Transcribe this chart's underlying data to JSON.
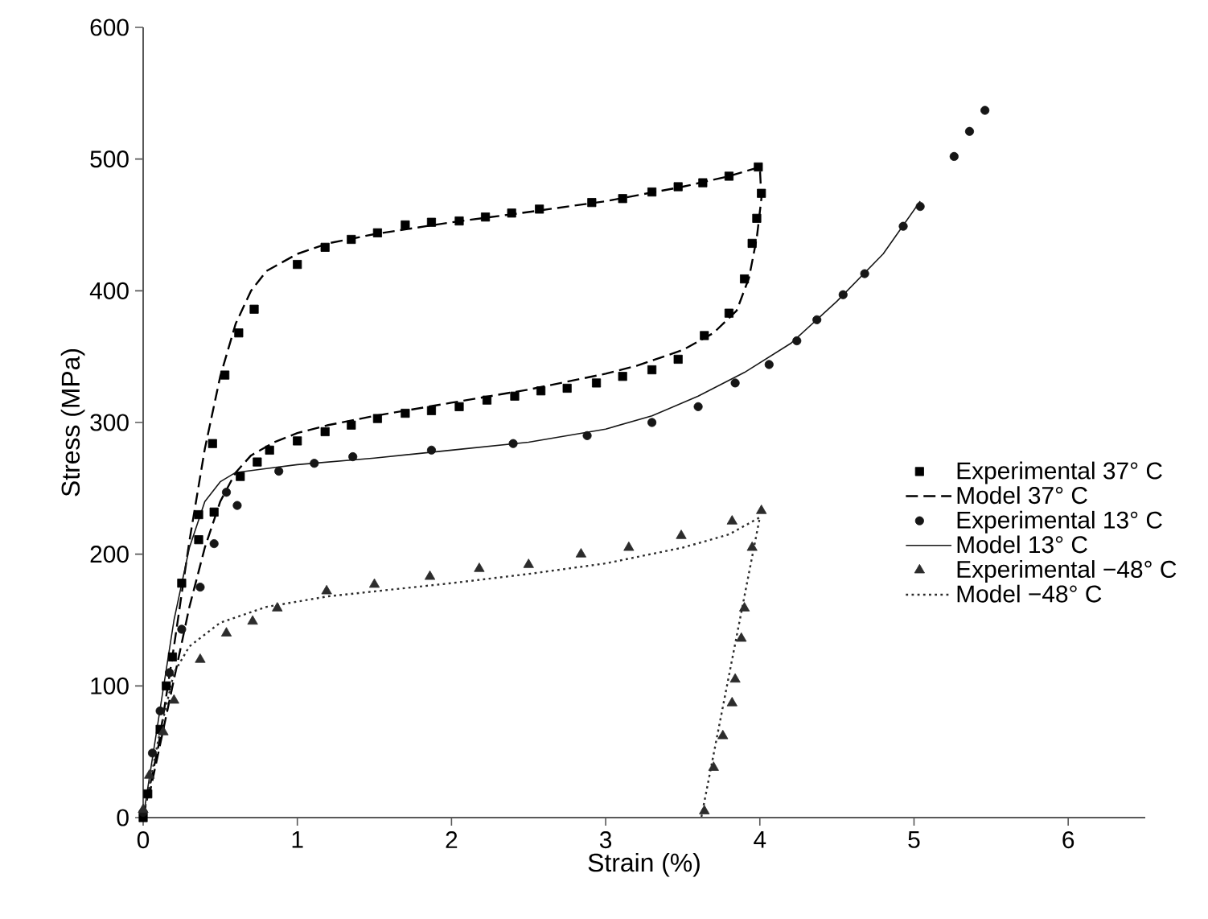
{
  "chart_data": {
    "type": "scatter",
    "xlabel": "Strain (%)",
    "ylabel": "Stress (MPa)",
    "xlim": [
      0,
      6.5
    ],
    "ylim": [
      0,
      600
    ],
    "xticks": [
      0,
      1,
      2,
      3,
      4,
      5,
      6
    ],
    "yticks": [
      0,
      100,
      200,
      300,
      400,
      500,
      600
    ],
    "grid": false,
    "legend": "right",
    "series": [
      {
        "name": "Experimental  37° C",
        "marker": "square",
        "color": "#000000",
        "x": [
          0.03,
          0.11,
          0.19,
          0.25,
          0.36,
          0.45,
          0.53,
          0.62,
          0.72,
          1.0,
          1.18,
          1.35,
          1.52,
          1.7,
          1.87,
          2.05,
          2.22,
          2.39,
          2.57,
          2.91,
          3.11,
          3.3,
          3.47,
          3.63,
          3.8,
          3.99,
          4.01,
          3.98,
          3.95,
          3.9,
          3.8,
          3.64,
          3.47,
          3.3,
          3.11,
          2.94,
          2.75,
          2.58,
          2.41,
          2.23,
          2.05,
          1.87,
          1.7,
          1.52,
          1.35,
          1.18,
          1.0,
          0.82,
          0.74,
          0.63,
          0.46,
          0.36,
          0.15,
          0.0
        ],
        "values": [
          18,
          67,
          122,
          178,
          230,
          284,
          336,
          368,
          386,
          420,
          433,
          439,
          444,
          450,
          452,
          453,
          456,
          459,
          462,
          467,
          470,
          475,
          479,
          482,
          487,
          494,
          474,
          455,
          436,
          409,
          383,
          366,
          348,
          340,
          335,
          330,
          326,
          324,
          320,
          317,
          312,
          309,
          307,
          303,
          298,
          293,
          286,
          279,
          270,
          259,
          232,
          211,
          100,
          0
        ]
      },
      {
        "name": "Model  37° C",
        "type": "line",
        "line_style": "dashed",
        "color": "#000000",
        "x": [
          0,
          0.1,
          0.2,
          0.3,
          0.4,
          0.5,
          0.6,
          0.7,
          0.8,
          1.0,
          1.2,
          1.5,
          2,
          2.45,
          3,
          3.5,
          3.8,
          4.0,
          4.01,
          3.98,
          3.93,
          3.85,
          3.7,
          3.5,
          3.2,
          3,
          2.5,
          2,
          1.5,
          1.2,
          1.0,
          0.85,
          0.7,
          0.6,
          0.5,
          0.4,
          0.3,
          0.2,
          0.1,
          0.03
        ],
        "values": [
          0,
          55,
          130,
          210,
          280,
          335,
          375,
          400,
          415,
          428,
          436,
          443,
          452,
          459,
          468,
          479,
          487,
          494,
          470,
          440,
          410,
          385,
          368,
          355,
          343,
          337,
          325,
          315,
          305,
          298,
          292,
          285,
          275,
          262,
          240,
          205,
          160,
          105,
          50,
          12
        ]
      },
      {
        "name": "Experimental  13° C",
        "marker": "circle",
        "color": "#161616",
        "x": [
          0,
          0.06,
          0.11,
          0.17,
          0.25,
          0.37,
          0.46,
          0.54,
          0.61,
          0.88,
          1.11,
          1.36,
          1.87,
          2.4,
          2.88,
          3.3,
          3.6,
          3.84,
          4.06,
          4.24,
          4.37,
          4.54,
          4.68,
          4.93,
          5.04,
          5.26,
          5.36,
          5.46
        ],
        "values": [
          4,
          49,
          81,
          110,
          143,
          175,
          208,
          247,
          237,
          263,
          269,
          274,
          279,
          284,
          290,
          300,
          312,
          330,
          344,
          362,
          378,
          397,
          413,
          449,
          464,
          502,
          521,
          537
        ]
      },
      {
        "name": "Model  13° C",
        "type": "line",
        "line_style": "solid",
        "color": "#161616",
        "x": [
          0,
          0.1,
          0.2,
          0.3,
          0.4,
          0.5,
          0.6,
          0.8,
          1.0,
          1.5,
          2.0,
          2.5,
          3.0,
          3.3,
          3.6,
          3.9,
          4.2,
          4.5,
          4.8,
          5.04
        ],
        "values": [
          0,
          75,
          150,
          205,
          240,
          255,
          262,
          265,
          268,
          273,
          279,
          285,
          295,
          305,
          320,
          338,
          360,
          392,
          428,
          468
        ]
      },
      {
        "name": "Experimental  −48° C",
        "marker": "triangle",
        "color": "#2c2c2c",
        "x": [
          0,
          0.04,
          0.13,
          0.2,
          0.37,
          0.54,
          0.71,
          0.87,
          1.19,
          1.5,
          1.86,
          2.18,
          2.5,
          2.84,
          3.15,
          3.49,
          3.82,
          4.01,
          3.95,
          3.9,
          3.88,
          3.84,
          3.82,
          3.76,
          3.7,
          3.64
        ],
        "values": [
          6,
          32,
          65,
          89,
          120,
          140,
          149,
          159,
          172,
          177,
          183,
          189,
          192,
          200,
          205,
          214,
          225,
          233,
          205,
          159,
          136,
          105,
          87,
          62,
          38,
          5
        ]
      },
      {
        "name": "Model  −48° C",
        "type": "line",
        "line_style": "dotted",
        "color": "#2c2c2c",
        "x": [
          0,
          0.1,
          0.2,
          0.3,
          0.5,
          0.8,
          1.2,
          2.0,
          2.5,
          3.0,
          3.5,
          3.8,
          4.0,
          3.62
        ],
        "values": [
          0,
          60,
          110,
          130,
          148,
          160,
          168,
          178,
          185,
          193,
          205,
          215,
          228,
          0
        ]
      }
    ]
  }
}
